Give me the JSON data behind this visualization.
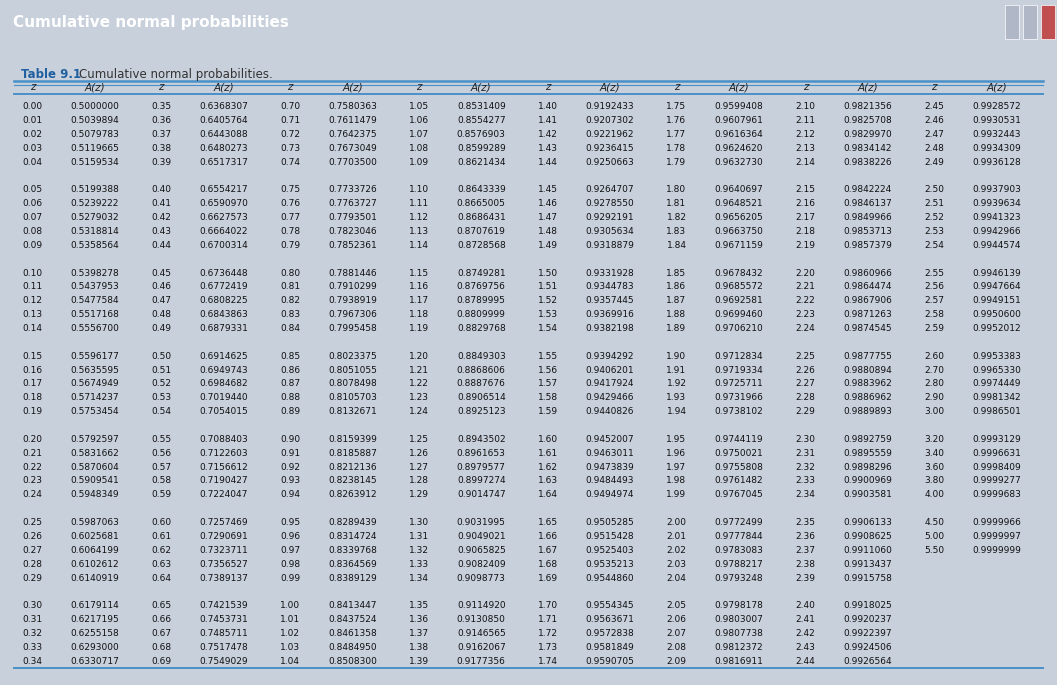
{
  "title": "Cumulative normal probabilities",
  "table_title": "Table 9.1",
  "table_subtitle": "Cumulative normal probabilities.",
  "header_bg": "#3a5a8c",
  "header_text_color": "#ffffff",
  "title_fontsize": 11,
  "table_data": [
    [
      "0.00",
      "0.5000000",
      "0.35",
      "0.6368307",
      "0.70",
      "0.7580363",
      "1.05",
      "0.8531409",
      "1.40",
      "0.9192433",
      "1.75",
      "0.9599408",
      "2.10",
      "0.9821356",
      "2.45",
      "0.9928572"
    ],
    [
      "0.01",
      "0.5039894",
      "0.36",
      "0.6405764",
      "0.71",
      "0.7611479",
      "1.06",
      "0.8554277",
      "1.41",
      "0.9207302",
      "1.76",
      "0.9607961",
      "2.11",
      "0.9825708",
      "2.46",
      "0.9930531"
    ],
    [
      "0.02",
      "0.5079783",
      "0.37",
      "0.6443088",
      "0.72",
      "0.7642375",
      "1.07",
      "0.8576903",
      "1.42",
      "0.9221962",
      "1.77",
      "0.9616364",
      "2.12",
      "0.9829970",
      "2.47",
      "0.9932443"
    ],
    [
      "0.03",
      "0.5119665",
      "0.38",
      "0.6480273",
      "0.73",
      "0.7673049",
      "1.08",
      "0.8599289",
      "1.43",
      "0.9236415",
      "1.78",
      "0.9624620",
      "2.13",
      "0.9834142",
      "2.48",
      "0.9934309"
    ],
    [
      "0.04",
      "0.5159534",
      "0.39",
      "0.6517317",
      "0.74",
      "0.7703500",
      "1.09",
      "0.8621434",
      "1.44",
      "0.9250663",
      "1.79",
      "0.9632730",
      "2.14",
      "0.9838226",
      "2.49",
      "0.9936128"
    ],
    [
      "",
      "",
      "",
      "",
      "",
      "",
      "",
      "",
      "",
      "",
      "",
      "",
      "",
      "",
      "",
      ""
    ],
    [
      "0.05",
      "0.5199388",
      "0.40",
      "0.6554217",
      "0.75",
      "0.7733726",
      "1.10",
      "0.8643339",
      "1.45",
      "0.9264707",
      "1.80",
      "0.9640697",
      "2.15",
      "0.9842224",
      "2.50",
      "0.9937903"
    ],
    [
      "0.06",
      "0.5239222",
      "0.41",
      "0.6590970",
      "0.76",
      "0.7763727",
      "1.11",
      "0.8665005",
      "1.46",
      "0.9278550",
      "1.81",
      "0.9648521",
      "2.16",
      "0.9846137",
      "2.51",
      "0.9939634"
    ],
    [
      "0.07",
      "0.5279032",
      "0.42",
      "0.6627573",
      "0.77",
      "0.7793501",
      "1.12",
      "0.8686431",
      "1.47",
      "0.9292191",
      "1.82",
      "0.9656205",
      "2.17",
      "0.9849966",
      "2.52",
      "0.9941323"
    ],
    [
      "0.08",
      "0.5318814",
      "0.43",
      "0.6664022",
      "0.78",
      "0.7823046",
      "1.13",
      "0.8707619",
      "1.48",
      "0.9305634",
      "1.83",
      "0.9663750",
      "2.18",
      "0.9853713",
      "2.53",
      "0.9942966"
    ],
    [
      "0.09",
      "0.5358564",
      "0.44",
      "0.6700314",
      "0.79",
      "0.7852361",
      "1.14",
      "0.8728568",
      "1.49",
      "0.9318879",
      "1.84",
      "0.9671159",
      "2.19",
      "0.9857379",
      "2.54",
      "0.9944574"
    ],
    [
      "",
      "",
      "",
      "",
      "",
      "",
      "",
      "",
      "",
      "",
      "",
      "",
      "",
      "",
      "",
      ""
    ],
    [
      "0.10",
      "0.5398278",
      "0.45",
      "0.6736448",
      "0.80",
      "0.7881446",
      "1.15",
      "0.8749281",
      "1.50",
      "0.9331928",
      "1.85",
      "0.9678432",
      "2.20",
      "0.9860966",
      "2.55",
      "0.9946139"
    ],
    [
      "0.11",
      "0.5437953",
      "0.46",
      "0.6772419",
      "0.81",
      "0.7910299",
      "1.16",
      "0.8769756",
      "1.51",
      "0.9344783",
      "1.86",
      "0.9685572",
      "2.21",
      "0.9864474",
      "2.56",
      "0.9947664"
    ],
    [
      "0.12",
      "0.5477584",
      "0.47",
      "0.6808225",
      "0.82",
      "0.7938919",
      "1.17",
      "0.8789995",
      "1.52",
      "0.9357445",
      "1.87",
      "0.9692581",
      "2.22",
      "0.9867906",
      "2.57",
      "0.9949151"
    ],
    [
      "0.13",
      "0.5517168",
      "0.48",
      "0.6843863",
      "0.83",
      "0.7967306",
      "1.18",
      "0.8809999",
      "1.53",
      "0.9369916",
      "1.88",
      "0.9699460",
      "2.23",
      "0.9871263",
      "2.58",
      "0.9950600"
    ],
    [
      "0.14",
      "0.5556700",
      "0.49",
      "0.6879331",
      "0.84",
      "0.7995458",
      "1.19",
      "0.8829768",
      "1.54",
      "0.9382198",
      "1.89",
      "0.9706210",
      "2.24",
      "0.9874545",
      "2.59",
      "0.9952012"
    ],
    [
      "",
      "",
      "",
      "",
      "",
      "",
      "",
      "",
      "",
      "",
      "",
      "",
      "",
      "",
      "",
      ""
    ],
    [
      "0.15",
      "0.5596177",
      "0.50",
      "0.6914625",
      "0.85",
      "0.8023375",
      "1.20",
      "0.8849303",
      "1.55",
      "0.9394292",
      "1.90",
      "0.9712834",
      "2.25",
      "0.9877755",
      "2.60",
      "0.9953383"
    ],
    [
      "0.16",
      "0.5635595",
      "0.51",
      "0.6949743",
      "0.86",
      "0.8051055",
      "1.21",
      "0.8868606",
      "1.56",
      "0.9406201",
      "1.91",
      "0.9719334",
      "2.26",
      "0.9880894",
      "2.70",
      "0.9965330"
    ],
    [
      "0.17",
      "0.5674949",
      "0.52",
      "0.6984682",
      "0.87",
      "0.8078498",
      "1.22",
      "0.8887676",
      "1.57",
      "0.9417924",
      "1.92",
      "0.9725711",
      "2.27",
      "0.9883962",
      "2.80",
      "0.9974449"
    ],
    [
      "0.18",
      "0.5714237",
      "0.53",
      "0.7019440",
      "0.88",
      "0.8105703",
      "1.23",
      "0.8906514",
      "1.58",
      "0.9429466",
      "1.93",
      "0.9731966",
      "2.28",
      "0.9886962",
      "2.90",
      "0.9981342"
    ],
    [
      "0.19",
      "0.5753454",
      "0.54",
      "0.7054015",
      "0.89",
      "0.8132671",
      "1.24",
      "0.8925123",
      "1.59",
      "0.9440826",
      "1.94",
      "0.9738102",
      "2.29",
      "0.9889893",
      "3.00",
      "0.9986501"
    ],
    [
      "",
      "",
      "",
      "",
      "",
      "",
      "",
      "",
      "",
      "",
      "",
      "",
      "",
      "",
      "",
      ""
    ],
    [
      "0.20",
      "0.5792597",
      "0.55",
      "0.7088403",
      "0.90",
      "0.8159399",
      "1.25",
      "0.8943502",
      "1.60",
      "0.9452007",
      "1.95",
      "0.9744119",
      "2.30",
      "0.9892759",
      "3.20",
      "0.9993129"
    ],
    [
      "0.21",
      "0.5831662",
      "0.56",
      "0.7122603",
      "0.91",
      "0.8185887",
      "1.26",
      "0.8961653",
      "1.61",
      "0.9463011",
      "1.96",
      "0.9750021",
      "2.31",
      "0.9895559",
      "3.40",
      "0.9996631"
    ],
    [
      "0.22",
      "0.5870604",
      "0.57",
      "0.7156612",
      "0.92",
      "0.8212136",
      "1.27",
      "0.8979577",
      "1.62",
      "0.9473839",
      "1.97",
      "0.9755808",
      "2.32",
      "0.9898296",
      "3.60",
      "0.9998409"
    ],
    [
      "0.23",
      "0.5909541",
      "0.58",
      "0.7190427",
      "0.93",
      "0.8238145",
      "1.28",
      "0.8997274",
      "1.63",
      "0.9484493",
      "1.98",
      "0.9761482",
      "2.33",
      "0.9900969",
      "3.80",
      "0.9999277"
    ],
    [
      "0.24",
      "0.5948349",
      "0.59",
      "0.7224047",
      "0.94",
      "0.8263912",
      "1.29",
      "0.9014747",
      "1.64",
      "0.9494974",
      "1.99",
      "0.9767045",
      "2.34",
      "0.9903581",
      "4.00",
      "0.9999683"
    ],
    [
      "",
      "",
      "",
      "",
      "",
      "",
      "",
      "",
      "",
      "",
      "",
      "",
      "",
      "",
      "",
      ""
    ],
    [
      "0.25",
      "0.5987063",
      "0.60",
      "0.7257469",
      "0.95",
      "0.8289439",
      "1.30",
      "0.9031995",
      "1.65",
      "0.9505285",
      "2.00",
      "0.9772499",
      "2.35",
      "0.9906133",
      "4.50",
      "0.9999966"
    ],
    [
      "0.26",
      "0.6025681",
      "0.61",
      "0.7290691",
      "0.96",
      "0.8314724",
      "1.31",
      "0.9049021",
      "1.66",
      "0.9515428",
      "2.01",
      "0.9777844",
      "2.36",
      "0.9908625",
      "5.00",
      "0.9999997"
    ],
    [
      "0.27",
      "0.6064199",
      "0.62",
      "0.7323711",
      "0.97",
      "0.8339768",
      "1.32",
      "0.9065825",
      "1.67",
      "0.9525403",
      "2.02",
      "0.9783083",
      "2.37",
      "0.9911060",
      "5.50",
      "0.9999999"
    ],
    [
      "0.28",
      "0.6102612",
      "0.63",
      "0.7356527",
      "0.98",
      "0.8364569",
      "1.33",
      "0.9082409",
      "1.68",
      "0.9535213",
      "2.03",
      "0.9788217",
      "2.38",
      "0.9913437",
      "",
      ""
    ],
    [
      "0.29",
      "0.6140919",
      "0.64",
      "0.7389137",
      "0.99",
      "0.8389129",
      "1.34",
      "0.9098773",
      "1.69",
      "0.9544860",
      "2.04",
      "0.9793248",
      "2.39",
      "0.9915758",
      "",
      ""
    ],
    [
      "",
      "",
      "",
      "",
      "",
      "",
      "",
      "",
      "",
      "",
      "",
      "",
      "",
      "",
      "",
      ""
    ],
    [
      "0.30",
      "0.6179114",
      "0.65",
      "0.7421539",
      "1.00",
      "0.8413447",
      "1.35",
      "0.9114920",
      "1.70",
      "0.9554345",
      "2.05",
      "0.9798178",
      "2.40",
      "0.9918025",
      "",
      ""
    ],
    [
      "0.31",
      "0.6217195",
      "0.66",
      "0.7453731",
      "1.01",
      "0.8437524",
      "1.36",
      "0.9130850",
      "1.71",
      "0.9563671",
      "2.06",
      "0.9803007",
      "2.41",
      "0.9920237",
      "",
      ""
    ],
    [
      "0.32",
      "0.6255158",
      "0.67",
      "0.7485711",
      "1.02",
      "0.8461358",
      "1.37",
      "0.9146565",
      "1.72",
      "0.9572838",
      "2.07",
      "0.9807738",
      "2.42",
      "0.9922397",
      "",
      ""
    ],
    [
      "0.33",
      "0.6293000",
      "0.68",
      "0.7517478",
      "1.03",
      "0.8484950",
      "1.38",
      "0.9162067",
      "1.73",
      "0.9581849",
      "2.08",
      "0.9812372",
      "2.43",
      "0.9924506",
      "",
      ""
    ],
    [
      "0.34",
      "0.6330717",
      "0.69",
      "0.7549029",
      "1.04",
      "0.8508300",
      "1.39",
      "0.9177356",
      "1.74",
      "0.9590705",
      "2.09",
      "0.9816911",
      "2.44",
      "0.9926564",
      "",
      ""
    ]
  ]
}
